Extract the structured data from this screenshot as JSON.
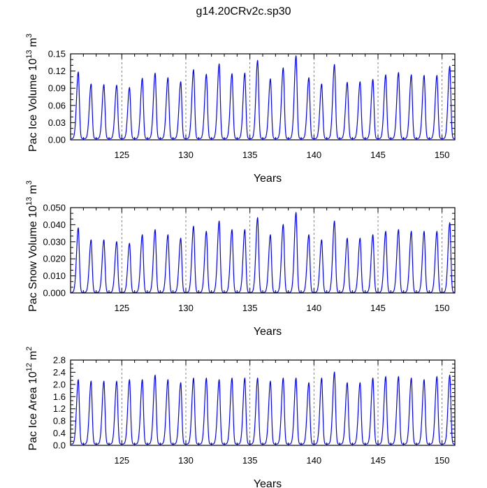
{
  "title": "g14.20CRv2c.sp30",
  "chart_data": [
    {
      "type": "line",
      "id": "ice-volume",
      "title": "",
      "xlabel": "Years",
      "ylabel": "Pac Ice Volume 10",
      "ylabel_exp": "13",
      "ylabel_unit": "m",
      "ylabel_unit_exp": "3",
      "xlim": [
        121,
        151
      ],
      "ylim": [
        0,
        0.15
      ],
      "xticks": [
        125,
        130,
        135,
        140,
        145,
        150
      ],
      "xtick_labels": [
        "125",
        "130",
        "135",
        "140",
        "145",
        "150"
      ],
      "yticks": [
        0,
        0.03,
        0.06,
        0.09,
        0.12,
        0.15
      ],
      "ytick_labels": [
        "0.00",
        "0.03",
        "0.06",
        "0.09",
        "0.12",
        "0.15"
      ],
      "vlines": [
        125,
        130,
        135,
        140,
        145,
        150
      ],
      "color": "#0000ff",
      "series": [
        {
          "name": "Pac Ice Volume",
          "x_start": 121.05,
          "period": 1.0,
          "peak_offset": 0.55,
          "baseline": 0.002,
          "peaks": [
            0.118,
            0.097,
            0.096,
            0.095,
            0.091,
            0.107,
            0.116,
            0.108,
            0.101,
            0.122,
            0.114,
            0.132,
            0.115,
            0.116,
            0.138,
            0.106,
            0.125,
            0.146,
            0.108,
            0.097,
            0.131,
            0.1,
            0.101,
            0.105,
            0.113,
            0.117,
            0.113,
            0.112,
            0.112,
            0.128
          ]
        }
      ]
    },
    {
      "type": "line",
      "id": "snow-volume",
      "title": "",
      "xlabel": "Years",
      "ylabel": "Pac Snow Volume 10",
      "ylabel_exp": "13",
      "ylabel_unit": "m",
      "ylabel_unit_exp": "3",
      "xlim": [
        121,
        151
      ],
      "ylim": [
        0,
        0.05
      ],
      "xticks": [
        125,
        130,
        135,
        140,
        145,
        150
      ],
      "xtick_labels": [
        "125",
        "130",
        "135",
        "140",
        "145",
        "150"
      ],
      "yticks": [
        0,
        0.01,
        0.02,
        0.03,
        0.04,
        0.05
      ],
      "ytick_labels": [
        "0.000",
        "0.010",
        "0.020",
        "0.030",
        "0.040",
        "0.050"
      ],
      "vlines": [
        125,
        130,
        135,
        140,
        145,
        150
      ],
      "color": "#0000ff",
      "series": [
        {
          "name": "Pac Snow Volume",
          "x_start": 121.05,
          "period": 1.0,
          "peak_offset": 0.55,
          "baseline": 0.0003,
          "peaks": [
            0.038,
            0.031,
            0.031,
            0.03,
            0.029,
            0.034,
            0.037,
            0.034,
            0.032,
            0.039,
            0.036,
            0.042,
            0.037,
            0.037,
            0.044,
            0.034,
            0.04,
            0.047,
            0.034,
            0.031,
            0.042,
            0.032,
            0.032,
            0.034,
            0.036,
            0.037,
            0.036,
            0.036,
            0.036,
            0.041
          ]
        }
      ]
    },
    {
      "type": "line",
      "id": "ice-area",
      "title": "",
      "xlabel": "Years",
      "ylabel": "Pac Ice Area 10",
      "ylabel_exp": "12",
      "ylabel_unit": "m",
      "ylabel_unit_exp": "2",
      "xlim": [
        121,
        151
      ],
      "ylim": [
        0,
        2.8
      ],
      "xticks": [
        125,
        130,
        135,
        140,
        145,
        150
      ],
      "xtick_labels": [
        "125",
        "130",
        "135",
        "140",
        "145",
        "150"
      ],
      "yticks": [
        0,
        0.4,
        0.8,
        1.2,
        1.6,
        2.0,
        2.4,
        2.8
      ],
      "ytick_labels": [
        "0.0",
        "0.4",
        "0.8",
        "1.2",
        "1.6",
        "2.0",
        "2.4",
        "2.8"
      ],
      "vlines": [
        125,
        130,
        135,
        140,
        145,
        150
      ],
      "color": "#0000ff",
      "series": [
        {
          "name": "Pac Ice Area",
          "x_start": 121.05,
          "period": 1.0,
          "peak_offset": 0.55,
          "baseline": 0.04,
          "peaks": [
            2.15,
            2.1,
            2.1,
            2.1,
            2.15,
            2.15,
            2.3,
            2.15,
            2.05,
            2.2,
            2.2,
            2.15,
            2.2,
            2.2,
            2.2,
            2.1,
            2.2,
            2.2,
            2.05,
            2.2,
            2.4,
            2.05,
            2.05,
            2.2,
            2.25,
            2.25,
            2.2,
            2.15,
            2.25,
            2.3
          ]
        }
      ]
    }
  ]
}
